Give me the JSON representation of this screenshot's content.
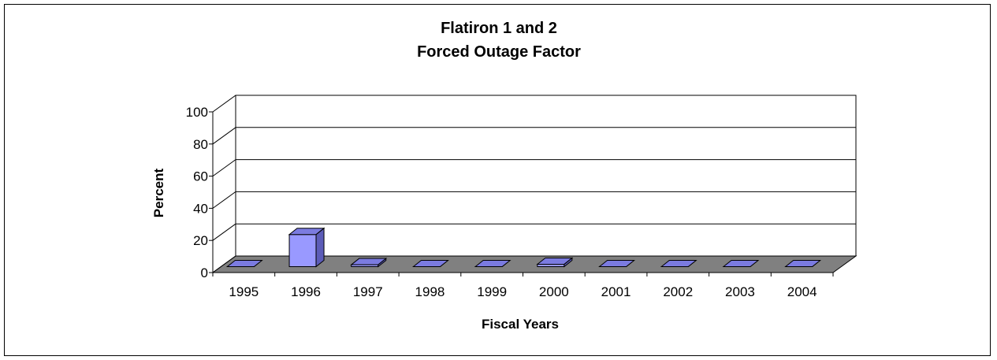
{
  "chart_data": {
    "type": "bar",
    "title": [
      "Flatiron 1 and 2",
      "Forced Outage Factor"
    ],
    "xlabel": "Fiscal Years",
    "ylabel": "Percent",
    "categories": [
      "1995",
      "1996",
      "1997",
      "1998",
      "1999",
      "2000",
      "2001",
      "2002",
      "2003",
      "2004"
    ],
    "values": [
      0,
      20,
      1.2,
      0,
      0,
      1.5,
      0,
      0,
      0,
      0
    ],
    "ylim": [
      0,
      100
    ],
    "yticks": [
      "0",
      "20",
      "40",
      "60",
      "80",
      "100"
    ],
    "grid": true,
    "legend": "none",
    "colors": {
      "bar_front": "#9999FF",
      "bar_top": "#7B7BE0",
      "bar_side": "#5C5CB8",
      "floor": "#808080",
      "wall": "#FFFFFF"
    }
  }
}
